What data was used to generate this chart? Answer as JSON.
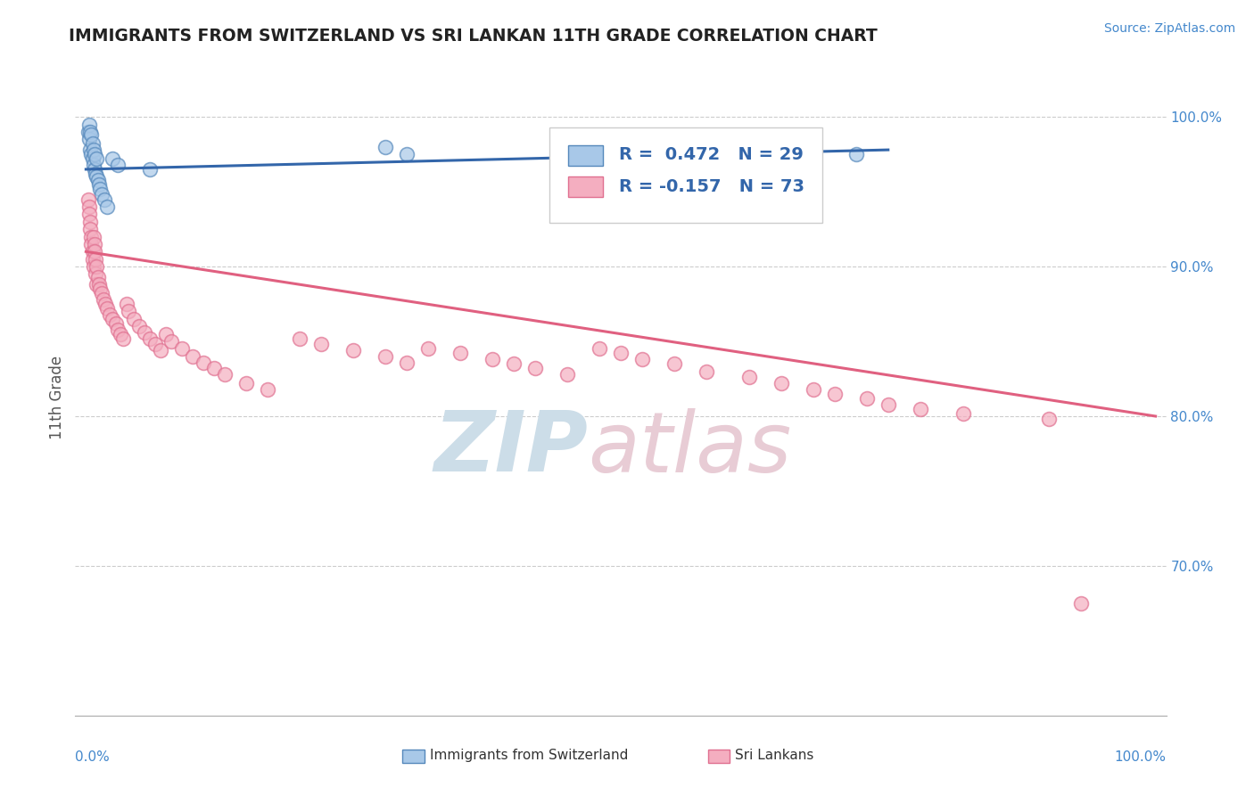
{
  "title": "IMMIGRANTS FROM SWITZERLAND VS SRI LANKAN 11TH GRADE CORRELATION CHART",
  "source": "Source: ZipAtlas.com",
  "ylabel": "11th Grade",
  "blue_color": "#a8c8e8",
  "pink_color": "#f4aec0",
  "blue_edge_color": "#5588bb",
  "pink_edge_color": "#e07090",
  "blue_line_color": "#3366aa",
  "pink_line_color": "#e06080",
  "grid_color": "#cccccc",
  "right_tick_color": "#4488cc",
  "title_color": "#222222",
  "source_color": "#4488cc",
  "ylabel_color": "#555555",
  "watermark_zip_color": "#ccdde8",
  "watermark_atlas_color": "#e8ccd5",
  "legend_r_color": "#333333",
  "legend_n_color": "#3366aa",
  "blue_scatter_x": [
    0.002,
    0.003,
    0.003,
    0.004,
    0.004,
    0.005,
    0.005,
    0.006,
    0.006,
    0.007,
    0.007,
    0.008,
    0.008,
    0.009,
    0.01,
    0.01,
    0.011,
    0.012,
    0.013,
    0.015,
    0.017,
    0.02,
    0.025,
    0.03,
    0.06,
    0.28,
    0.3,
    0.48,
    0.72
  ],
  "blue_scatter_y": [
    0.99,
    0.985,
    0.995,
    0.978,
    0.99,
    0.975,
    0.988,
    0.972,
    0.982,
    0.968,
    0.978,
    0.965,
    0.975,
    0.962,
    0.96,
    0.972,
    0.958,
    0.955,
    0.952,
    0.948,
    0.945,
    0.94,
    0.972,
    0.968,
    0.965,
    0.98,
    0.975,
    0.975,
    0.975
  ],
  "pink_scatter_x": [
    0.002,
    0.003,
    0.003,
    0.004,
    0.004,
    0.005,
    0.005,
    0.006,
    0.006,
    0.007,
    0.007,
    0.008,
    0.008,
    0.009,
    0.009,
    0.01,
    0.01,
    0.011,
    0.012,
    0.013,
    0.015,
    0.016,
    0.018,
    0.02,
    0.022,
    0.025,
    0.028,
    0.03,
    0.032,
    0.035,
    0.038,
    0.04,
    0.045,
    0.05,
    0.055,
    0.06,
    0.065,
    0.07,
    0.075,
    0.08,
    0.09,
    0.1,
    0.11,
    0.12,
    0.13,
    0.15,
    0.17,
    0.2,
    0.22,
    0.25,
    0.28,
    0.3,
    0.32,
    0.35,
    0.38,
    0.4,
    0.42,
    0.45,
    0.48,
    0.5,
    0.52,
    0.55,
    0.58,
    0.62,
    0.65,
    0.68,
    0.7,
    0.73,
    0.75,
    0.78,
    0.82,
    0.9,
    0.93
  ],
  "pink_scatter_y": [
    0.945,
    0.94,
    0.935,
    0.93,
    0.925,
    0.92,
    0.915,
    0.91,
    0.905,
    0.9,
    0.92,
    0.915,
    0.91,
    0.905,
    0.895,
    0.9,
    0.888,
    0.893,
    0.888,
    0.885,
    0.882,
    0.878,
    0.875,
    0.872,
    0.868,
    0.865,
    0.862,
    0.858,
    0.855,
    0.852,
    0.875,
    0.87,
    0.865,
    0.86,
    0.856,
    0.852,
    0.848,
    0.844,
    0.855,
    0.85,
    0.845,
    0.84,
    0.836,
    0.832,
    0.828,
    0.822,
    0.818,
    0.852,
    0.848,
    0.844,
    0.84,
    0.836,
    0.845,
    0.842,
    0.838,
    0.835,
    0.832,
    0.828,
    0.845,
    0.842,
    0.838,
    0.835,
    0.83,
    0.826,
    0.822,
    0.818,
    0.815,
    0.812,
    0.808,
    0.805,
    0.802,
    0.798,
    0.675
  ],
  "blue_trend_x": [
    0.0,
    0.75
  ],
  "blue_trend_y": [
    0.965,
    0.978
  ],
  "pink_trend_x": [
    0.0,
    1.0
  ],
  "pink_trend_y": [
    0.91,
    0.8
  ],
  "ylim": [
    0.6,
    1.025
  ],
  "xlim": [
    -0.01,
    1.01
  ],
  "yticks": [
    0.7,
    0.8,
    0.9,
    1.0
  ],
  "yticklabels": [
    "70.0%",
    "80.0%",
    "90.0%",
    "100.0%"
  ]
}
